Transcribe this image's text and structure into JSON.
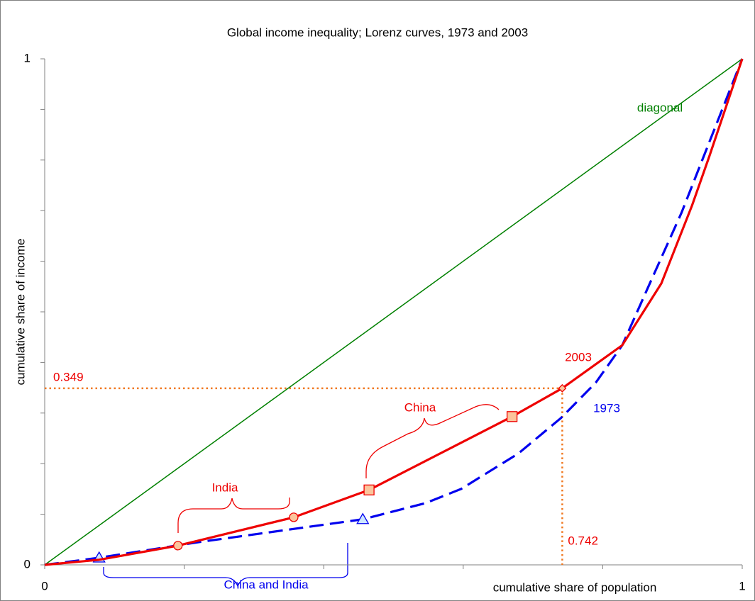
{
  "chart_data": {
    "type": "line",
    "title": "Global income inequality; Lorenz curves, 1973 and 2003",
    "x_label": "cumulative share of population",
    "y_label": "cumulative share of income",
    "xlim": [
      0,
      1
    ],
    "ylim": [
      0,
      1
    ],
    "xticks": [
      0,
      1
    ],
    "yticks": [
      0,
      1
    ],
    "xticks_minor": [
      0.2,
      0.4,
      0.6,
      0.8
    ],
    "yticks_minor": [
      0.1,
      0.2,
      0.3,
      0.4,
      0.5,
      0.6,
      0.7,
      0.8,
      0.9
    ],
    "series": [
      {
        "name": "diagonal",
        "color": "#008000",
        "dash": false,
        "x": [
          0,
          1
        ],
        "values": [
          0,
          1
        ]
      },
      {
        "name": "1973",
        "color": "#0000ee",
        "dash": true,
        "marker_fill": "#cce6ff",
        "x": [
          0,
          0.078,
          0.221,
          0.456,
          0.546,
          0.597,
          0.679,
          0.74,
          0.79,
          0.828,
          0.872,
          0.913,
          0.953,
          1
        ],
        "values": [
          0,
          0.014,
          0.045,
          0.09,
          0.122,
          0.15,
          0.22,
          0.29,
          0.36,
          0.434,
          0.57,
          0.696,
          0.836,
          1
        ],
        "markers": [
          null,
          "triangle",
          null,
          "triangle",
          null,
          null,
          null,
          null,
          null,
          null,
          null,
          null,
          null,
          null
        ]
      },
      {
        "name": "2003",
        "color": "#ee0000",
        "dash": false,
        "marker_fill": "#fbc59c",
        "x": [
          0,
          0.078,
          0.191,
          0.357,
          0.465,
          0.67,
          0.742,
          0.828,
          0.884,
          0.928,
          0.953,
          1
        ],
        "values": [
          0,
          0.01,
          0.038,
          0.094,
          0.148,
          0.293,
          0.349,
          0.434,
          0.556,
          0.71,
          0.808,
          1
        ],
        "markers": [
          null,
          null,
          "circle",
          "circle",
          "square",
          "square",
          "diamond",
          null,
          null,
          null,
          null,
          null
        ]
      }
    ],
    "reference": {
      "x": 0.742,
      "y": 0.349,
      "color": "#f07820"
    },
    "annotations": [
      "India",
      "China",
      "China and India"
    ]
  }
}
